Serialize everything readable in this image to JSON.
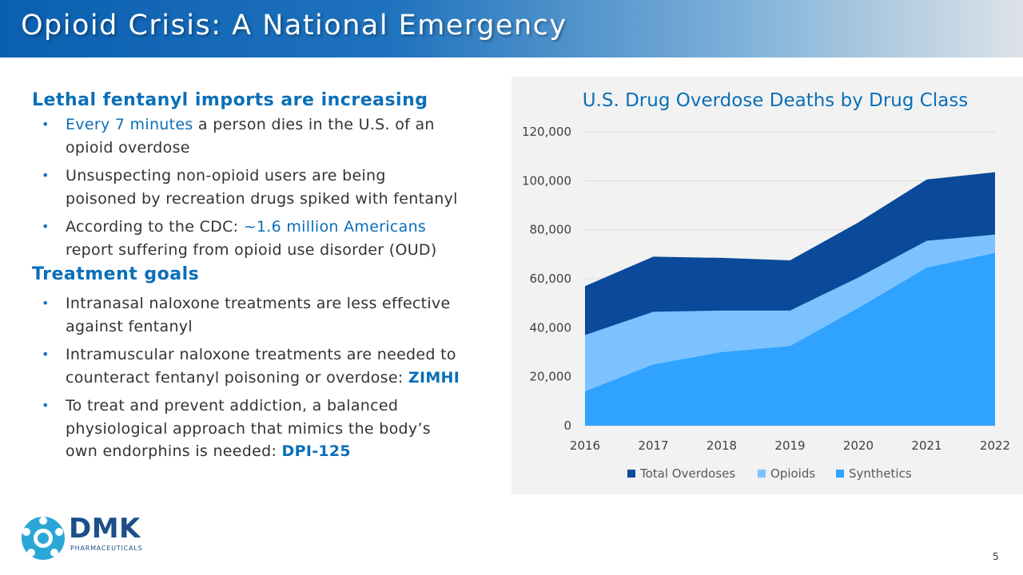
{
  "slide": {
    "title": "Opioid Crisis: A National Emergency",
    "page_number": "5"
  },
  "left": {
    "heading1": "Lethal fentanyl imports are increasing",
    "b1": {
      "hl": "Every 7 minutes",
      "t1": " a person dies in the U.S. of an",
      "t2": "opioid overdose"
    },
    "b2": {
      "t1": "Unsuspecting non-opioid users are being",
      "t2": "poisoned by recreation drugs spiked with fentanyl"
    },
    "b3": {
      "t1": "According to the CDC: ",
      "hl": "~1.6 million Americans",
      "t2": "report suffering from opioid use disorder (OUD)"
    },
    "heading2": "Treatment goals",
    "b4": {
      "t1": "Intranasal naloxone treatments are less effective",
      "t2": "against fentanyl"
    },
    "b5": {
      "t1": "Intramuscular naloxone treatments are needed to",
      "t2": "counteract fentanyl poisoning or overdose: ",
      "hl": "ZIMHI"
    },
    "b6": {
      "t1": "To treat and prevent addiction, a balanced",
      "t2": "physiological approach that mimics the body’s",
      "t3": "own endorphins is needed: ",
      "hl": "DPI-125"
    }
  },
  "logo": {
    "name": "DMK",
    "sub": "PHARMACEUTICALS"
  },
  "colors": {
    "total": "#0b4a9a",
    "opioids": "#7cc2ff",
    "synthetics": "#2fa3ff",
    "title_blue": "#0a6fb8"
  },
  "chart_data": {
    "type": "area",
    "title": "U.S. Drug Overdose Deaths by Drug Class",
    "categories": [
      "2016",
      "2017",
      "2018",
      "2019",
      "2020",
      "2021",
      "2022"
    ],
    "series": [
      {
        "name": "Total Overdoses",
        "values": [
          57000,
          69000,
          68500,
          67500,
          83000,
          100500,
          103500
        ]
      },
      {
        "name": "Opioids",
        "values": [
          37000,
          46500,
          47000,
          47000,
          60500,
          75500,
          78000
        ]
      },
      {
        "name": "Synthetics",
        "values": [
          14000,
          25000,
          30000,
          32500,
          48000,
          64500,
          70500
        ]
      }
    ],
    "y_ticks": [
      "0",
      "20,000",
      "40,000",
      "60,000",
      "80,000",
      "100,000",
      "120,000"
    ],
    "ylim": [
      0,
      120000
    ],
    "xlabel": "",
    "ylabel": "",
    "grid": true,
    "legend_position": "bottom"
  }
}
